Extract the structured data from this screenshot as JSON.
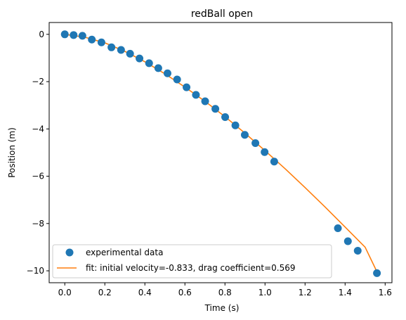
{
  "chart_data": {
    "type": "scatter",
    "title": "redBall open",
    "xlabel": "Time (s)",
    "ylabel": "Position (m)",
    "xlim": [
      -0.078,
      1.634
    ],
    "ylim": [
      -10.504,
      0.5
    ],
    "x_ticks": [
      0.0,
      0.2,
      0.4,
      0.6,
      0.8,
      1.0,
      1.2,
      1.4,
      1.6
    ],
    "x_tick_labels": [
      "0.0",
      "0.2",
      "0.4",
      "0.6",
      "0.8",
      "1.0",
      "1.2",
      "1.4",
      "1.6"
    ],
    "y_ticks": [
      0,
      -2,
      -4,
      -6,
      -8,
      -10
    ],
    "y_tick_labels": [
      "0",
      "−2",
      "−4",
      "−6",
      "−8",
      "−10"
    ],
    "grid": false,
    "legend_position": "lower-left",
    "series": [
      {
        "name": "experimental data",
        "kind": "scatter",
        "color": "#1f77b4",
        "x": [
          0.0,
          0.044,
          0.088,
          0.135,
          0.183,
          0.233,
          0.281,
          0.326,
          0.373,
          0.421,
          0.467,
          0.513,
          0.561,
          0.608,
          0.655,
          0.701,
          0.752,
          0.801,
          0.852,
          0.899,
          0.952,
          0.998,
          1.046,
          1.364,
          1.414,
          1.463,
          1.559
        ],
        "y": [
          0.0,
          -0.03,
          -0.06,
          -0.22,
          -0.34,
          -0.55,
          -0.66,
          -0.82,
          -1.02,
          -1.22,
          -1.43,
          -1.65,
          -1.91,
          -2.24,
          -2.56,
          -2.83,
          -3.15,
          -3.5,
          -3.85,
          -4.25,
          -4.6,
          -4.98,
          -5.38,
          -8.2,
          -8.75,
          -9.15,
          -10.1
        ]
      },
      {
        "name": "fit: initial velocity=-0.833, drag coefficient=0.569",
        "kind": "line",
        "color": "#ff7f0e",
        "x": [
          0.0,
          0.1,
          0.2,
          0.3,
          0.4,
          0.5,
          0.6,
          0.7,
          0.8,
          0.9,
          1.0,
          1.1,
          1.2,
          1.3,
          1.4,
          1.5,
          1.559
        ],
        "y": [
          0.0,
          -0.12,
          -0.36,
          -0.72,
          -1.16,
          -1.67,
          -2.23,
          -2.83,
          -3.48,
          -4.18,
          -4.92,
          -5.68,
          -6.48,
          -7.3,
          -8.15,
          -9.0,
          -10.04
        ]
      }
    ]
  }
}
